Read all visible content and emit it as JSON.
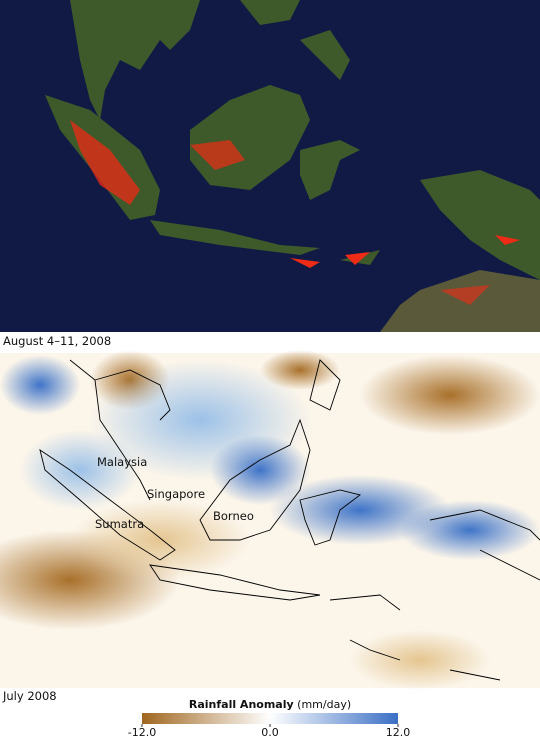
{
  "top_map": {
    "caption": "August 4–11, 2008"
  },
  "bottom_map": {
    "caption": "July 2008",
    "labels": [
      "Malaysia",
      "Singapore",
      "Sumatra",
      "Borneo"
    ]
  },
  "colorbar": {
    "title": "Rainfall Anomaly",
    "unit": "(mm/day)",
    "range": [
      -12,
      12
    ],
    "ticks": [
      {
        "value": -12,
        "label": "-12.0"
      },
      {
        "value": 0,
        "label": "0.0"
      },
      {
        "value": 12,
        "label": "12.0"
      }
    ],
    "colors": [
      "#a0661f",
      "#ffffff",
      "#3a6fc4"
    ]
  }
}
